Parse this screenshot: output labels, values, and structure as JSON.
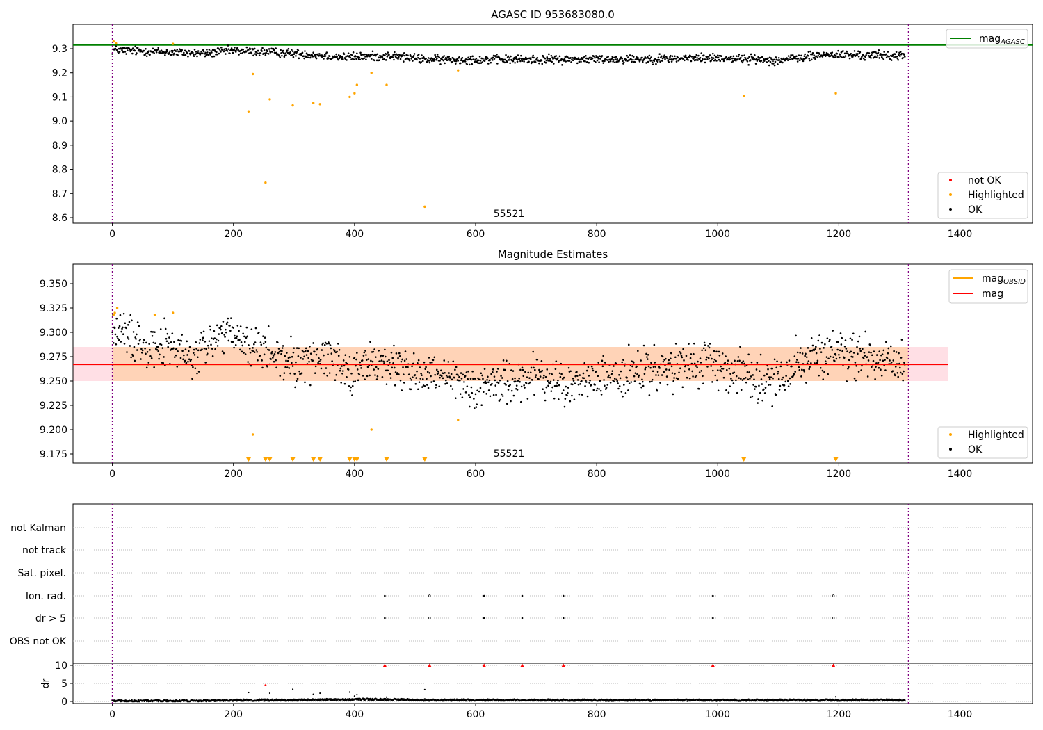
{
  "chart_data": [
    {
      "type": "scatter",
      "title": "AGASC ID 953683080.0",
      "annotation": "55521",
      "xlim": [
        -65,
        1520
      ],
      "ylim": [
        8.58,
        9.4
      ],
      "x_ticks": [
        0,
        200,
        400,
        600,
        800,
        1000,
        1200,
        1400
      ],
      "y_ticks": [
        8.6,
        8.7,
        8.8,
        8.9,
        9.0,
        9.1,
        9.2,
        9.3
      ],
      "y_tick_labels": [
        "8.6",
        "8.7",
        "8.8",
        "8.9",
        "9.0",
        "9.1",
        "9.2",
        "9.3"
      ],
      "vlines": [
        0,
        1315
      ],
      "mag_agasc": 9.315,
      "legend_upper": {
        "placement": "top-right",
        "entries": [
          {
            "label": "mag",
            "subscript": "AGASC",
            "color": "#008000"
          }
        ]
      },
      "legend_lower": {
        "placement": "bottom-right",
        "entries": [
          {
            "label": "not OK",
            "color": "#ff0000"
          },
          {
            "label": "Highlighted",
            "color": "#ffa500"
          },
          {
            "label": "OK",
            "color": "#000000"
          }
        ]
      },
      "ok_trend": [
        [
          0,
          9.295
        ],
        [
          100,
          9.285
        ],
        [
          150,
          9.28
        ],
        [
          200,
          9.292
        ],
        [
          260,
          9.285
        ],
        [
          320,
          9.278
        ],
        [
          380,
          9.265
        ],
        [
          460,
          9.27
        ],
        [
          520,
          9.255
        ],
        [
          700,
          9.255
        ],
        [
          900,
          9.258
        ],
        [
          1000,
          9.262
        ],
        [
          1100,
          9.252
        ],
        [
          1180,
          9.275
        ],
        [
          1312,
          9.27
        ]
      ],
      "ok_spread": 0.009,
      "ok_count": 1310,
      "highlighted": [
        [
          2,
          9.33
        ],
        [
          6,
          9.322
        ],
        [
          100,
          9.32
        ],
        [
          225,
          9.04
        ],
        [
          232,
          9.195
        ],
        [
          253,
          8.745
        ],
        [
          260,
          9.09
        ],
        [
          298,
          9.065
        ],
        [
          332,
          9.075
        ],
        [
          343,
          9.07
        ],
        [
          392,
          9.1
        ],
        [
          400,
          9.115
        ],
        [
          404,
          9.15
        ],
        [
          428,
          9.2
        ],
        [
          453,
          9.15
        ],
        [
          516,
          8.645
        ],
        [
          571,
          9.21
        ],
        [
          1043,
          9.105
        ],
        [
          1195,
          9.115
        ]
      ],
      "not_ok": []
    },
    {
      "type": "scatter",
      "title": "Magnitude Estimates",
      "annotation": "55521",
      "xlim": [
        -65,
        1520
      ],
      "ylim": [
        9.165,
        9.368
      ],
      "x_ticks": [
        0,
        200,
        400,
        600,
        800,
        1000,
        1200,
        1400
      ],
      "y_ticks": [
        9.175,
        9.2,
        9.225,
        9.25,
        9.275,
        9.3,
        9.325,
        9.35
      ],
      "y_tick_labels": [
        "9.175",
        "9.200",
        "9.225",
        "9.250",
        "9.275",
        "9.300",
        "9.325",
        "9.350"
      ],
      "vlines": [
        0,
        1315
      ],
      "mag": 9.267,
      "mag_band": [
        9.25,
        9.285
      ],
      "mag_line_range": [
        -65,
        1380
      ],
      "mag_obsid": {
        "range": [
          0,
          1315
        ],
        "value": 9.267,
        "band": [
          9.25,
          9.285
        ]
      },
      "legend_upper": {
        "placement": "top-right",
        "entries": [
          {
            "label": "mag",
            "subscript": "OBSID",
            "color": "#ffa500"
          },
          {
            "label": "mag",
            "color": "#ff0000"
          }
        ]
      },
      "legend_lower": {
        "placement": "bottom-right",
        "entries": [
          {
            "label": "Highlighted",
            "color": "#ffa500"
          },
          {
            "label": "OK",
            "color": "#000000"
          }
        ]
      },
      "ok_trend": [
        [
          0,
          9.303
        ],
        [
          50,
          9.29
        ],
        [
          100,
          9.285
        ],
        [
          130,
          9.27
        ],
        [
          180,
          9.3
        ],
        [
          230,
          9.285
        ],
        [
          300,
          9.268
        ],
        [
          360,
          9.278
        ],
        [
          390,
          9.26
        ],
        [
          440,
          9.27
        ],
        [
          520,
          9.255
        ],
        [
          600,
          9.245
        ],
        [
          700,
          9.255
        ],
        [
          750,
          9.245
        ],
        [
          820,
          9.255
        ],
        [
          900,
          9.26
        ],
        [
          1000,
          9.268
        ],
        [
          1060,
          9.255
        ],
        [
          1090,
          9.25
        ],
        [
          1150,
          9.273
        ],
        [
          1200,
          9.278
        ],
        [
          1312,
          9.27
        ]
      ],
      "ok_spread": 0.011,
      "ok_count": 1310,
      "highlighted": [
        [
          2,
          9.318
        ],
        [
          4,
          9.32
        ],
        [
          8,
          9.325
        ],
        [
          70,
          9.318
        ],
        [
          100,
          9.32
        ],
        [
          232,
          9.195
        ],
        [
          428,
          9.2
        ],
        [
          571,
          9.21
        ]
      ],
      "off_scale_markers_x": [
        225,
        253,
        260,
        298,
        332,
        343,
        392,
        400,
        404,
        453,
        516,
        1043,
        1195
      ]
    },
    {
      "type": "scatter",
      "title": "",
      "xlim": [
        -65,
        1520
      ],
      "x_ticks": [
        0,
        200,
        400,
        600,
        800,
        1000,
        1200,
        1400
      ],
      "vlines": [
        0,
        1315
      ],
      "flag_labels": [
        "not Kalman",
        "not track",
        "Sat. pixel.",
        "Ion. rad.",
        "dr > 5",
        "OBS not OK"
      ],
      "flag_points": {
        "Ion. rad.": [
          450,
          524,
          614,
          677,
          745,
          992,
          1191
        ],
        "dr > 5": [
          450,
          524,
          614,
          677,
          745,
          992,
          1191
        ]
      },
      "dr_ylabel": "dr",
      "dr_ylim": [
        -0.5,
        10.8
      ],
      "dr_ticks": [
        0,
        5,
        10
      ],
      "dr_trend": [
        [
          0,
          0.2
        ],
        [
          100,
          0.15
        ],
        [
          200,
          0.35
        ],
        [
          300,
          0.4
        ],
        [
          430,
          0.6
        ],
        [
          520,
          0.4
        ],
        [
          1000,
          0.35
        ],
        [
          1312,
          0.4
        ]
      ],
      "dr_scatter_points": [
        [
          225,
          2.5
        ],
        [
          253,
          4.5
        ],
        [
          260,
          2.3
        ],
        [
          298,
          3.4
        ],
        [
          332,
          2.0
        ],
        [
          343,
          2.3
        ],
        [
          392,
          2.6
        ],
        [
          400,
          1.5
        ],
        [
          404,
          1.9
        ],
        [
          453,
          1.2
        ],
        [
          516,
          3.3
        ],
        [
          1195,
          1.3
        ]
      ],
      "dr_capped_x": [
        450,
        524,
        614,
        677,
        745,
        992,
        1191
      ]
    }
  ]
}
